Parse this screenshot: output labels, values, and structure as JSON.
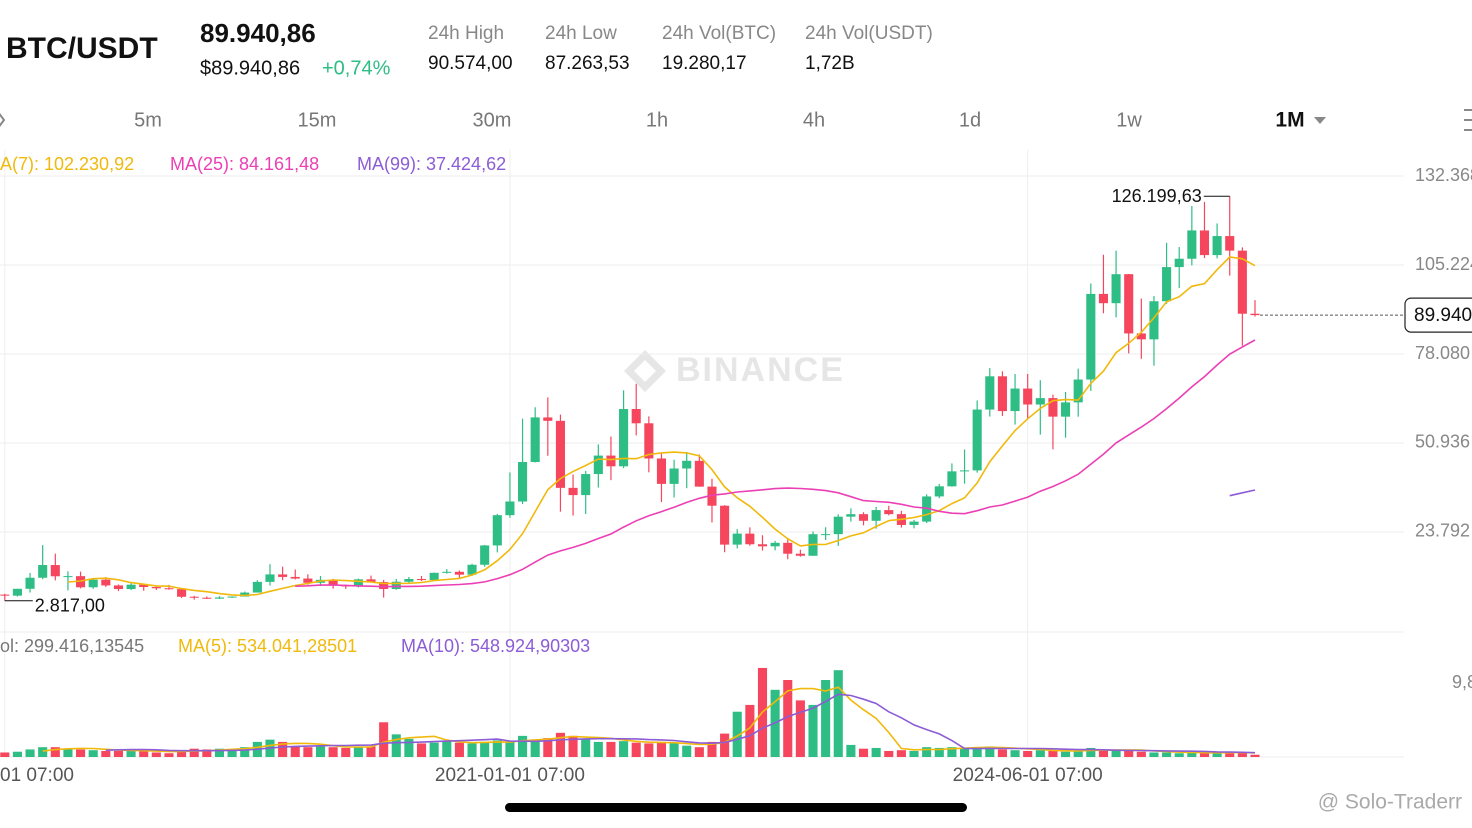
{
  "header": {
    "pair": "BTC/USDT",
    "price": "89.940,86",
    "price_usd": "$89.940,86",
    "change": "+0,74%",
    "stats": [
      {
        "label": "24h High",
        "value": "90.574,00"
      },
      {
        "label": "24h Low",
        "value": "87.263,53"
      },
      {
        "label": "24h Vol(BTC)",
        "value": "19.280,17"
      },
      {
        "label": "24h Vol(USDT)",
        "value": "1,72B"
      }
    ]
  },
  "timeframes": [
    "5m",
    "15m",
    "30m",
    "1h",
    "4h",
    "1d",
    "1w",
    "1M"
  ],
  "watermark": "BINANCE",
  "credit": "@ Solo-Traderr",
  "chart_data": {
    "type": "candlestick",
    "up_color": "#2ebd85",
    "down_color": "#f6465d",
    "ma": [
      {
        "label": "A(7): 102.230,92",
        "period": 7,
        "color": "#f0b90b"
      },
      {
        "label": "MA(25): 84.161,48",
        "period": 25,
        "color": "#eb40b5"
      },
      {
        "label": "MA(99): 37.424,62",
        "period": 99,
        "color": "#8c5cd6"
      }
    ],
    "ylim": [
      -6710,
      140300
    ],
    "yticks": [
      {
        "value": 23792,
        "label": "23.792"
      },
      {
        "value": 50936,
        "label": "50.936"
      },
      {
        "value": 78080,
        "label": "78.080"
      },
      {
        "value": 105224,
        "label": "105.224"
      },
      {
        "value": 132368,
        "label": "132.368"
      }
    ],
    "xlim": [
      0.62,
      111.8
    ],
    "xticks": [
      {
        "value": 1,
        "label": "01 07:00"
      },
      {
        "value": 41,
        "label": "2021-01-01 07:00"
      },
      {
        "value": 82,
        "label": "2024-06-01 07:00"
      }
    ],
    "grid": true,
    "annotations": [
      {
        "label": "126.199,63",
        "value": 126199.63
      },
      {
        "label": "2.817,00",
        "value": 2817
      }
    ],
    "last_price": {
      "value": 89940.86,
      "label": "89.940"
    },
    "ohlc": [
      [
        4261,
        4745,
        3400,
        4724
      ],
      [
        4690,
        4939,
        2817,
        4378
      ],
      [
        4378,
        6470,
        4110,
        6463
      ],
      [
        6463,
        11300,
        5325,
        9838
      ],
      [
        9838,
        19798,
        9380,
        13716
      ],
      [
        13716,
        17176,
        9035,
        10285
      ],
      [
        10285,
        11786,
        6000,
        10326
      ],
      [
        10326,
        11710,
        6600,
        6923
      ],
      [
        6923,
        9759,
        6430,
        9246
      ],
      [
        9246,
        10020,
        7034,
        7494
      ],
      [
        7494,
        7786,
        5750,
        6391
      ],
      [
        6391,
        8507,
        6070,
        7730
      ],
      [
        7730,
        7760,
        5880,
        7011
      ],
      [
        7011,
        7410,
        6100,
        6626
      ],
      [
        6626,
        7680,
        6200,
        6371
      ],
      [
        6371,
        6589,
        3652,
        4041
      ],
      [
        4041,
        4330,
        3157,
        3742
      ],
      [
        3742,
        4110,
        3350,
        3458
      ],
      [
        3458,
        4240,
        3375,
        3820
      ],
      [
        3820,
        4140,
        3660,
        4103
      ],
      [
        4103,
        5628,
        4080,
        5321
      ],
      [
        5321,
        9090,
        5320,
        8575
      ],
      [
        8575,
        13970,
        7450,
        10855
      ],
      [
        10855,
        13200,
        9080,
        10090
      ],
      [
        10090,
        12350,
        9320,
        9590
      ],
      [
        9590,
        10900,
        7710,
        8294
      ],
      [
        8294,
        10370,
        7300,
        9200
      ],
      [
        9200,
        9510,
        6515,
        7546
      ],
      [
        7546,
        7745,
        6435,
        7195
      ],
      [
        7195,
        9578,
        6871,
        9353
      ],
      [
        9353,
        10500,
        8440,
        8523
      ],
      [
        8523,
        9189,
        3782,
        6411
      ],
      [
        6411,
        9460,
        6150,
        8621
      ],
      [
        8621,
        10080,
        8117,
        9448
      ],
      [
        9448,
        10380,
        8833,
        9138
      ],
      [
        9138,
        11444,
        8893,
        11335
      ],
      [
        11335,
        12468,
        11112,
        11650
      ],
      [
        11650,
        12050,
        9825,
        10776
      ],
      [
        10776,
        14100,
        10374,
        13792
      ],
      [
        13792,
        19863,
        13195,
        19695
      ],
      [
        19695,
        29300,
        17572,
        28923
      ],
      [
        28923,
        41950,
        28130,
        33092
      ],
      [
        33092,
        58352,
        32296,
        45135
      ],
      [
        45135,
        61844,
        45000,
        58741
      ],
      [
        58741,
        64854,
        47044,
        57694
      ],
      [
        57694,
        59592,
        30000,
        37253
      ],
      [
        37253,
        41330,
        28805,
        35046
      ],
      [
        35046,
        42448,
        29278,
        41462
      ],
      [
        41462,
        50500,
        37332,
        47100
      ],
      [
        47100,
        52920,
        39600,
        43824
      ],
      [
        43824,
        67000,
        43283,
        61299
      ],
      [
        61299,
        69000,
        53256,
        56950
      ],
      [
        56950,
        59053,
        42000,
        46216
      ],
      [
        46216,
        47990,
        32917,
        38466
      ],
      [
        38466,
        45821,
        34322,
        43160
      ],
      [
        43160,
        48189,
        37155,
        45510
      ],
      [
        45510,
        47444,
        37578,
        37630
      ],
      [
        37630,
        40023,
        26700,
        31801
      ],
      [
        31801,
        31982,
        17622,
        19942
      ],
      [
        19942,
        24668,
        18781,
        23293
      ],
      [
        23293,
        25211,
        19600,
        20050
      ],
      [
        20050,
        22799,
        18125,
        19423
      ],
      [
        19423,
        21085,
        18190,
        20490
      ],
      [
        20490,
        21480,
        15476,
        17164
      ],
      [
        17164,
        18387,
        16256,
        16542
      ],
      [
        16542,
        23960,
        16499,
        23125
      ],
      [
        23125,
        25250,
        21351,
        23142
      ],
      [
        23142,
        29184,
        19549,
        28465
      ],
      [
        28465,
        31000,
        26942,
        29233
      ],
      [
        29233,
        29820,
        25811,
        27210
      ],
      [
        27210,
        31431,
        24800,
        30472
      ],
      [
        30472,
        31804,
        28861,
        29232
      ],
      [
        29232,
        30244,
        25166,
        25940
      ],
      [
        25940,
        27488,
        24901,
        26963
      ],
      [
        26963,
        35280,
        26538,
        34639
      ],
      [
        34639,
        38450,
        34097,
        37724
      ],
      [
        37724,
        44700,
        37615,
        42284
      ],
      [
        42284,
        48969,
        38555,
        42580
      ],
      [
        42580,
        63913,
        41884,
        61130
      ],
      [
        61130,
        73777,
        59005,
        71280
      ],
      [
        71280,
        72797,
        59191,
        60672
      ],
      [
        60672,
        71979,
        56552,
        67540
      ],
      [
        67540,
        71997,
        58402,
        62678
      ],
      [
        62678,
        70079,
        53485,
        64628
      ],
      [
        64628,
        65660,
        49000,
        58974
      ],
      [
        58974,
        66498,
        52550,
        63327
      ],
      [
        63327,
        73620,
        58946,
        70292
      ],
      [
        70292,
        99588,
        66835,
        96407
      ],
      [
        96407,
        108353,
        90500,
        93576
      ],
      [
        93576,
        109588,
        89256,
        102430
      ],
      [
        102430,
        102500,
        78258,
        84350
      ],
      [
        84350,
        95000,
        76606,
        82550
      ],
      [
        82550,
        95758,
        74508,
        94173
      ],
      [
        94173,
        111980,
        93377,
        104592
      ],
      [
        104592,
        110690,
        98200,
        107135
      ],
      [
        107135,
        123218,
        105100,
        115765
      ],
      [
        115765,
        124474,
        107350,
        108246
      ],
      [
        108246,
        117900,
        107255,
        114049
      ],
      [
        114049,
        126199.63,
        102000,
        109608
      ],
      [
        109608,
        110600,
        80600,
        90360
      ],
      [
        90360,
        94500,
        89500,
        89940.86
      ]
    ],
    "volume": {
      "label": "ol: 299.416,13545",
      "ma": [
        {
          "label": "MA(5): 534.041,28501",
          "period": 5,
          "color": "#f0b90b"
        },
        {
          "label": "MA(10): 548.924,90303",
          "period": 10,
          "color": "#8c5cd6"
        }
      ],
      "ylim": [
        0,
        12.85
      ],
      "yticks": [
        {
          "value": 9.8,
          "label": "9,8"
        }
      ],
      "values": [
        0.3,
        0.6,
        0.7,
        1.0,
        1.3,
        1.3,
        1.1,
        1.0,
        0.9,
        0.8,
        0.8,
        0.9,
        0.8,
        0.6,
        0.5,
        0.9,
        1.1,
        1.0,
        1.1,
        1.0,
        1.3,
        2.0,
        2.3,
        2.0,
        1.4,
        1.3,
        1.5,
        1.3,
        1.2,
        1.3,
        1.4,
        4.6,
        3.0,
        2.4,
        1.8,
        1.9,
        2.1,
        1.9,
        1.8,
        2.0,
        2.2,
        2.0,
        2.8,
        2.3,
        2.5,
        3.2,
        2.8,
        2.4,
        2.0,
        2.0,
        2.1,
        1.9,
        1.8,
        1.9,
        1.8,
        1.5,
        1.3,
        2.0,
        3.1,
        6.0,
        6.9,
        11.8,
        8.9,
        10.2,
        7.5,
        6.9,
        10.2,
        11.5,
        1.6,
        1.1,
        1.2,
        0.8,
        0.9,
        0.8,
        1.3,
        1.2,
        1.3,
        1.2,
        1.3,
        1.4,
        1.0,
        0.9,
        0.8,
        0.9,
        0.8,
        0.7,
        0.8,
        1.2,
        1.0,
        0.9,
        0.8,
        0.7,
        0.6,
        0.6,
        0.5,
        0.6,
        0.55,
        0.5,
        0.72,
        0.6,
        0.3
      ]
    }
  }
}
